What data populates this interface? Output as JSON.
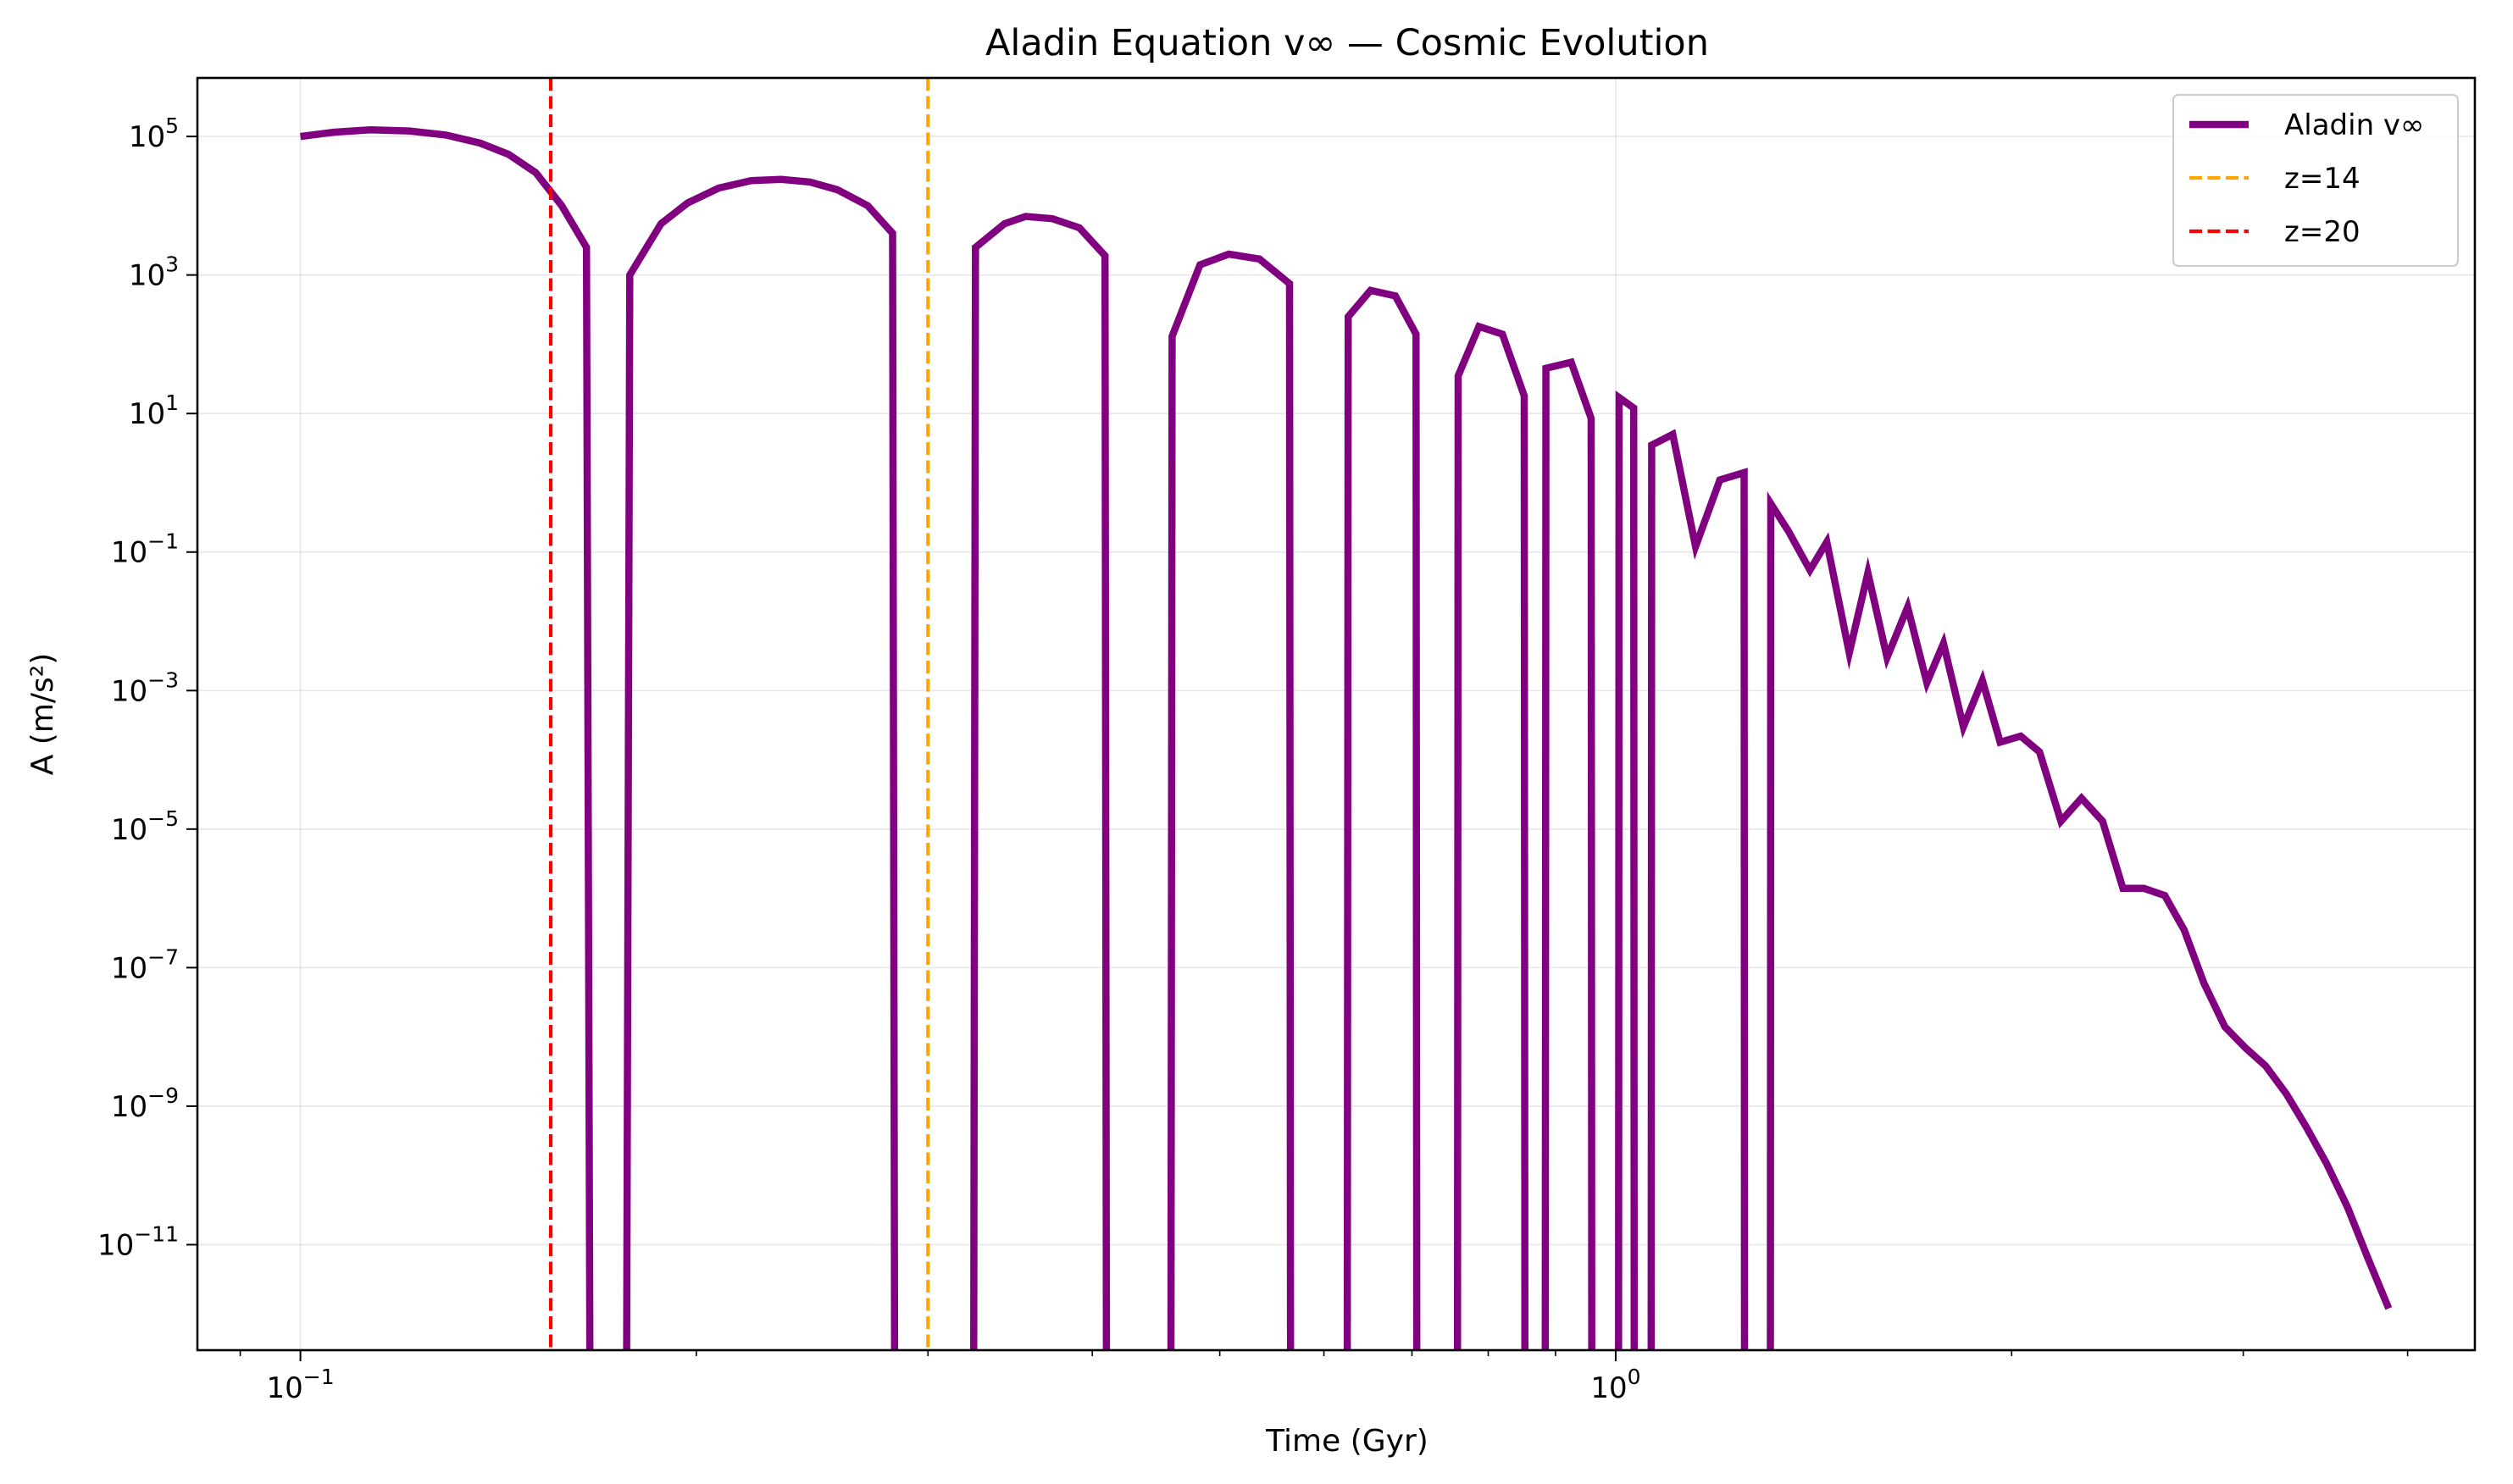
{
  "chart_data": {
    "type": "line",
    "title": "Aladin Equation v∞ — Cosmic Evolution",
    "xlabel": "Time (Gyr)",
    "ylabel": "A (m/s²)",
    "xscale": "log",
    "yscale": "log",
    "xlim": [
      0.0835,
      4.5
    ],
    "ylim": [
      3e-13,
      700000.0
    ],
    "grid": true,
    "legend_position": "top-right",
    "x_ticks": [
      {
        "value": 0.1,
        "base": "10",
        "exp": "−1"
      },
      {
        "value": 1,
        "base": "10",
        "exp": "0"
      }
    ],
    "y_ticks": [
      {
        "value": 100000.0,
        "base": "10",
        "exp": "5"
      },
      {
        "value": 1000.0,
        "base": "10",
        "exp": "3"
      },
      {
        "value": 10.0,
        "base": "10",
        "exp": "1"
      },
      {
        "value": 0.1,
        "base": "10",
        "exp": "−1"
      },
      {
        "value": 0.001,
        "base": "10",
        "exp": "−3"
      },
      {
        "value": 1e-05,
        "base": "10",
        "exp": "−5"
      },
      {
        "value": 1e-07,
        "base": "10",
        "exp": "−7"
      },
      {
        "value": 1e-09,
        "base": "10",
        "exp": "−9"
      },
      {
        "value": 1e-11,
        "base": "10",
        "exp": "−11"
      }
    ],
    "series": [
      {
        "name": "Aladin v∞",
        "color": "#800080",
        "style": "solid",
        "points": [
          [
            0.1,
            100000.0
          ],
          [
            0.106,
            115000.0
          ],
          [
            0.113,
            125000.0
          ],
          [
            0.121,
            120000.0
          ],
          [
            0.129,
            105000.0
          ],
          [
            0.137,
            80000.0
          ],
          [
            0.144,
            55000.0
          ],
          [
            0.151,
            30000.0
          ],
          [
            0.158,
            10000.0
          ],
          [
            0.165,
            2500.0
          ],
          [
            0.166,
            1e-13
          ],
          [
            0.177,
            1e-13
          ],
          [
            0.178,
            1000.0
          ],
          [
            0.188,
            5500.0
          ],
          [
            0.197,
            11000.0
          ],
          [
            0.208,
            18000.0
          ],
          [
            0.22,
            23000.0
          ],
          [
            0.232,
            24000.0
          ],
          [
            0.244,
            22000.0
          ],
          [
            0.256,
            17000.0
          ],
          [
            0.27,
            10000.0
          ],
          [
            0.282,
            4000.0
          ],
          [
            0.283,
            1e-13
          ],
          [
            0.325,
            1e-13
          ],
          [
            0.326,
            2500.0
          ],
          [
            0.343,
            5500.0
          ],
          [
            0.356,
            7000.0
          ],
          [
            0.373,
            6500.0
          ],
          [
            0.391,
            4800.0
          ],
          [
            0.409,
            1900.0
          ],
          [
            0.41,
            1e-13
          ],
          [
            0.459,
            1e-13
          ],
          [
            0.46,
            130
          ],
          [
            0.483,
            1400.0
          ],
          [
            0.508,
            2000.0
          ],
          [
            0.536,
            1700.0
          ],
          [
            0.565,
            750
          ],
          [
            0.566,
            1e-13
          ],
          [
            0.625,
            1e-13
          ],
          [
            0.626,
            250
          ],
          [
            0.651,
            600
          ],
          [
            0.68,
            500
          ],
          [
            0.705,
            140
          ],
          [
            0.706,
            1e-13
          ],
          [
            0.758,
            1e-13
          ],
          [
            0.759,
            35
          ],
          [
            0.787,
            180
          ],
          [
            0.82,
            140
          ],
          [
            0.852,
            18
          ],
          [
            0.853,
            1e-13
          ],
          [
            0.884,
            1e-13
          ],
          [
            0.885,
            45
          ],
          [
            0.925,
            55
          ],
          [
            0.958,
            8.5
          ],
          [
            0.959,
            1e-13
          ],
          [
            1.005,
            1e-13
          ],
          [
            1.006,
            17
          ],
          [
            1.032,
            12
          ],
          [
            1.033,
            1e-13
          ],
          [
            1.064,
            1e-13
          ],
          [
            1.065,
            3.5
          ],
          [
            1.105,
            5.0
          ],
          [
            1.15,
            0.12
          ],
          [
            1.2,
            1.1
          ],
          [
            1.252,
            1.4
          ],
          [
            1.253,
            1e-13
          ],
          [
            1.311,
            1e-13
          ],
          [
            1.312,
            0.5
          ],
          [
            1.353,
            0.2
          ],
          [
            1.405,
            0.055
          ],
          [
            1.447,
            0.14
          ],
          [
            1.505,
            0.0035
          ],
          [
            1.555,
            0.05
          ],
          [
            1.608,
            0.003
          ],
          [
            1.667,
            0.016
          ],
          [
            1.724,
            0.0013
          ],
          [
            1.775,
            0.0048
          ],
          [
            1.838,
            0.0003
          ],
          [
            1.9,
            0.0014
          ],
          [
            1.96,
            0.00018
          ],
          [
            2.032,
            0.00022
          ],
          [
            2.1,
            0.00013
          ],
          [
            2.18,
            1.3e-05
          ],
          [
            2.26,
            2.8e-05
          ],
          [
            2.345,
            1.3e-05
          ],
          [
            2.43,
            1.4e-06
          ],
          [
            2.52,
            1.4e-06
          ],
          [
            2.615,
            1.1e-06
          ],
          [
            2.705,
            3.5e-07
          ],
          [
            2.8,
            6e-08
          ],
          [
            2.905,
            1.4e-08
          ],
          [
            3.01,
            7e-09
          ],
          [
            3.12,
            3.8e-09
          ],
          [
            3.235,
            1.5e-09
          ],
          [
            3.35,
            5e-10
          ],
          [
            3.47,
            1.5e-10
          ],
          [
            3.6,
            3.5e-11
          ],
          [
            3.73,
            6.5e-12
          ],
          [
            3.87,
            1.2e-12
          ]
        ]
      },
      {
        "name": "z=14",
        "color": "#FFA500",
        "style": "dashed",
        "x": 0.3
      },
      {
        "name": "z=20",
        "color": "#FF0000",
        "style": "dashed",
        "x": 0.155
      }
    ]
  }
}
